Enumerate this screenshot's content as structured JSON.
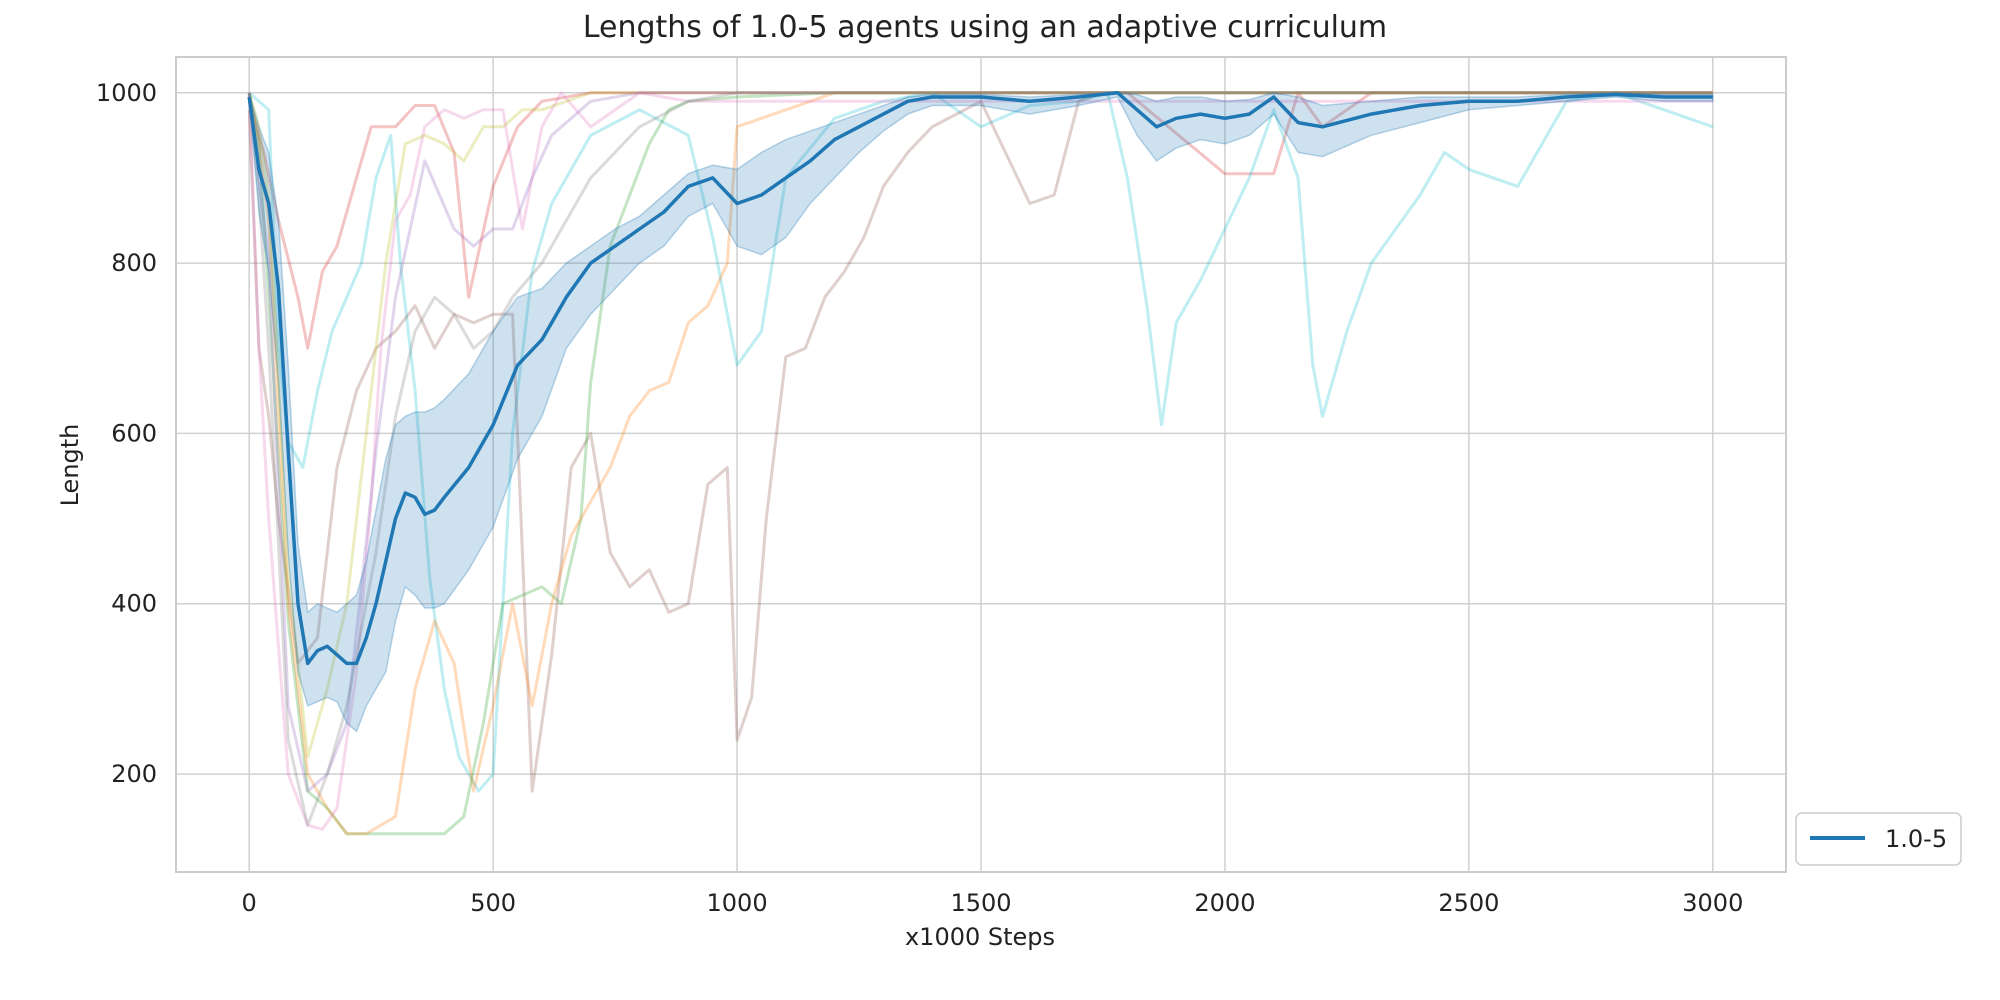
{
  "chart_data": {
    "type": "line",
    "title": "Lengths of 1.0-5 agents using an adaptive curriculum",
    "xlabel": "x1000 Steps",
    "ylabel": "Length",
    "xlim": [
      -150,
      3150
    ],
    "ylim": [
      85,
      1042
    ],
    "xticks": [
      0,
      500,
      1000,
      1500,
      2000,
      2500,
      3000
    ],
    "yticks": [
      200,
      400,
      600,
      800,
      1000
    ],
    "grid": true,
    "legend": {
      "placement": "bottom-right, outside axes",
      "entries": [
        "1.0-5"
      ]
    },
    "mean_series": {
      "name": "1.0-5",
      "color": "#1f77b4",
      "x": [
        0,
        20,
        40,
        60,
        80,
        100,
        120,
        140,
        160,
        180,
        200,
        220,
        240,
        260,
        280,
        300,
        320,
        340,
        360,
        380,
        400,
        450,
        500,
        550,
        600,
        650,
        700,
        750,
        800,
        850,
        900,
        950,
        1000,
        1050,
        1100,
        1150,
        1200,
        1250,
        1300,
        1350,
        1400,
        1500,
        1600,
        1700,
        1780,
        1820,
        1860,
        1900,
        1950,
        2000,
        2050,
        2100,
        2150,
        2200,
        2300,
        2400,
        2500,
        2600,
        2700,
        2800,
        2900,
        3000
      ],
      "y": [
        995,
        910,
        870,
        770,
        580,
        400,
        330,
        345,
        350,
        340,
        330,
        330,
        360,
        400,
        450,
        500,
        530,
        525,
        505,
        510,
        525,
        560,
        610,
        680,
        710,
        760,
        800,
        820,
        840,
        860,
        890,
        900,
        870,
        880,
        900,
        920,
        945,
        960,
        975,
        990,
        995,
        995,
        990,
        995,
        1000,
        980,
        960,
        970,
        975,
        970,
        975,
        995,
        965,
        960,
        975,
        985,
        990,
        990,
        995,
        998,
        995,
        995
      ]
    },
    "band": {
      "x": [
        0,
        20,
        40,
        60,
        80,
        100,
        120,
        140,
        160,
        180,
        200,
        220,
        240,
        260,
        280,
        300,
        320,
        340,
        360,
        380,
        400,
        450,
        500,
        550,
        600,
        650,
        700,
        750,
        800,
        850,
        900,
        950,
        1000,
        1050,
        1100,
        1150,
        1200,
        1250,
        1300,
        1350,
        1400,
        1500,
        1600,
        1700,
        1780,
        1820,
        1860,
        1900,
        1950,
        2000,
        2050,
        2100,
        2150,
        2200,
        2300,
        2400,
        2500,
        2600,
        2700,
        2800,
        2900,
        3000
      ],
      "upper": [
        1000,
        960,
        930,
        850,
        680,
        470,
        390,
        400,
        395,
        390,
        400,
        410,
        450,
        510,
        570,
        610,
        620,
        625,
        625,
        630,
        640,
        670,
        720,
        760,
        770,
        800,
        820,
        840,
        855,
        880,
        905,
        915,
        910,
        930,
        945,
        955,
        965,
        975,
        985,
        995,
        998,
        998,
        995,
        998,
        1000,
        998,
        990,
        995,
        995,
        990,
        992,
        1000,
        995,
        985,
        990,
        995,
        995,
        995,
        998,
        1000,
        998,
        998
      ],
      "lower": [
        990,
        860,
        790,
        660,
        460,
        320,
        280,
        285,
        290,
        285,
        260,
        250,
        280,
        300,
        320,
        380,
        420,
        410,
        395,
        395,
        400,
        440,
        490,
        570,
        620,
        700,
        740,
        770,
        800,
        820,
        855,
        870,
        820,
        810,
        830,
        870,
        900,
        930,
        955,
        975,
        985,
        985,
        975,
        985,
        995,
        950,
        920,
        935,
        945,
        940,
        950,
        975,
        930,
        925,
        950,
        965,
        980,
        985,
        990,
        995,
        990,
        990
      ]
    },
    "individual_runs": [
      {
        "color": "#d62728",
        "x": [
          0,
          30,
          60,
          100,
          120,
          150,
          180,
          220,
          250,
          300,
          340,
          380,
          420,
          450,
          500,
          550,
          600,
          700,
          800,
          900,
          1000,
          1100,
          1200,
          1300,
          1400,
          1500,
          1800,
          2000,
          2100,
          2150,
          2200,
          2300,
          2500,
          3000
        ],
        "y": [
          990,
          930,
          850,
          760,
          700,
          790,
          820,
          900,
          960,
          960,
          985,
          985,
          930,
          760,
          890,
          960,
          990,
          1000,
          1000,
          1000,
          1000,
          1000,
          1000,
          1000,
          1000,
          1000,
          1000,
          905,
          905,
          1000,
          960,
          1000,
          1000,
          1000
        ]
      },
      {
        "color": "#17becf",
        "x": [
          0,
          20,
          40,
          60,
          80,
          110,
          140,
          170,
          200,
          230,
          260,
          290,
          310,
          340,
          370,
          400,
          430,
          470,
          500,
          540,
          580,
          620,
          700,
          800,
          900,
          950,
          1000,
          1050,
          1100,
          1200,
          1300,
          1400,
          1500,
          1600,
          1700,
          1760,
          1800,
          1840,
          1870,
          1900,
          1950,
          2000,
          2050,
          2100,
          2150,
          2180,
          2200,
          2250,
          2300,
          2400,
          2450,
          2500,
          2600,
          2700,
          2800,
          3000
        ],
        "y": [
          1000,
          990,
          980,
          700,
          590,
          560,
          650,
          720,
          760,
          800,
          900,
          950,
          800,
          650,
          430,
          300,
          220,
          180,
          200,
          600,
          790,
          870,
          950,
          980,
          950,
          830,
          680,
          720,
          900,
          970,
          990,
          1000,
          960,
          985,
          990,
          1000,
          900,
          750,
          610,
          730,
          780,
          840,
          900,
          980,
          900,
          680,
          620,
          720,
          800,
          880,
          930,
          910,
          890,
          990,
          1000,
          960
        ]
      },
      {
        "color": "#8c564b",
        "x": [
          0,
          20,
          40,
          60,
          100,
          140,
          180,
          220,
          260,
          300,
          340,
          380,
          420,
          460,
          500,
          540,
          580,
          620,
          660,
          700,
          740,
          780,
          820,
          860,
          900,
          940,
          980,
          1000,
          1030,
          1060,
          1100,
          1140,
          1180,
          1220,
          1260,
          1300,
          1350,
          1400,
          1500,
          1600,
          1650,
          1700,
          1750,
          3000
        ],
        "y": [
          980,
          700,
          620,
          500,
          330,
          360,
          560,
          650,
          700,
          720,
          750,
          700,
          740,
          730,
          740,
          740,
          180,
          340,
          560,
          600,
          460,
          420,
          440,
          390,
          400,
          540,
          560,
          240,
          290,
          500,
          690,
          700,
          760,
          790,
          830,
          890,
          930,
          960,
          990,
          870,
          880,
          990,
          1000,
          1000
        ]
      },
      {
        "color": "#2ca02c",
        "x": [
          0,
          20,
          40,
          80,
          120,
          160,
          200,
          240,
          280,
          320,
          360,
          400,
          440,
          480,
          520,
          560,
          600,
          640,
          680,
          700,
          740,
          780,
          820,
          860,
          900,
          1000,
          1200,
          1400,
          3000
        ],
        "y": [
          1000,
          940,
          760,
          380,
          180,
          160,
          130,
          130,
          130,
          130,
          130,
          130,
          150,
          260,
          400,
          410,
          420,
          400,
          500,
          660,
          820,
          880,
          940,
          980,
          990,
          995,
          1000,
          1000,
          1000
        ]
      },
      {
        "color": "#ff7f0e",
        "x": [
          0,
          20,
          40,
          80,
          120,
          160,
          200,
          240,
          300,
          340,
          380,
          420,
          460,
          500,
          540,
          580,
          620,
          660,
          700,
          740,
          780,
          820,
          860,
          900,
          940,
          980,
          1000,
          1100,
          1200,
          1400,
          3000
        ],
        "y": [
          1000,
          940,
          850,
          400,
          200,
          160,
          130,
          130,
          150,
          300,
          380,
          330,
          180,
          280,
          400,
          280,
          400,
          480,
          520,
          560,
          620,
          650,
          660,
          730,
          750,
          800,
          960,
          980,
          1000,
          1000,
          1000
        ]
      },
      {
        "color": "#e377c2",
        "x": [
          0,
          20,
          40,
          80,
          120,
          150,
          180,
          220,
          250,
          270,
          300,
          330,
          360,
          400,
          440,
          480,
          520,
          560,
          600,
          640,
          700,
          800,
          900,
          1000,
          3000
        ],
        "y": [
          1000,
          700,
          500,
          200,
          140,
          135,
          160,
          320,
          520,
          700,
          850,
          880,
          960,
          980,
          970,
          980,
          980,
          840,
          960,
          1000,
          960,
          1000,
          990,
          990,
          990
        ]
      },
      {
        "color": "#bcbd22",
        "x": [
          0,
          20,
          40,
          80,
          120,
          160,
          200,
          240,
          280,
          320,
          360,
          400,
          440,
          480,
          520,
          560,
          600,
          650,
          700,
          800,
          900,
          1000,
          3000
        ],
        "y": [
          1000,
          960,
          880,
          440,
          220,
          300,
          400,
          600,
          800,
          940,
          950,
          940,
          920,
          960,
          960,
          980,
          980,
          990,
          1000,
          1000,
          1000,
          1000,
          1000
        ]
      },
      {
        "color": "#9467bd",
        "x": [
          0,
          20,
          40,
          80,
          120,
          160,
          200,
          260,
          300,
          360,
          420,
          460,
          500,
          540,
          580,
          620,
          700,
          800,
          900,
          1000,
          3000
        ],
        "y": [
          1000,
          900,
          800,
          280,
          180,
          200,
          260,
          580,
          760,
          920,
          840,
          820,
          840,
          840,
          900,
          950,
          990,
          1000,
          1000,
          1000,
          1000
        ]
      },
      {
        "color": "#7f7f7f",
        "x": [
          0,
          20,
          40,
          80,
          120,
          160,
          200,
          260,
          300,
          340,
          380,
          420,
          460,
          500,
          540,
          600,
          700,
          800,
          900,
          1000,
          3000
        ],
        "y": [
          1000,
          880,
          700,
          240,
          140,
          200,
          280,
          460,
          620,
          720,
          760,
          740,
          700,
          720,
          760,
          800,
          900,
          960,
          990,
          1000,
          1000
        ]
      }
    ]
  }
}
